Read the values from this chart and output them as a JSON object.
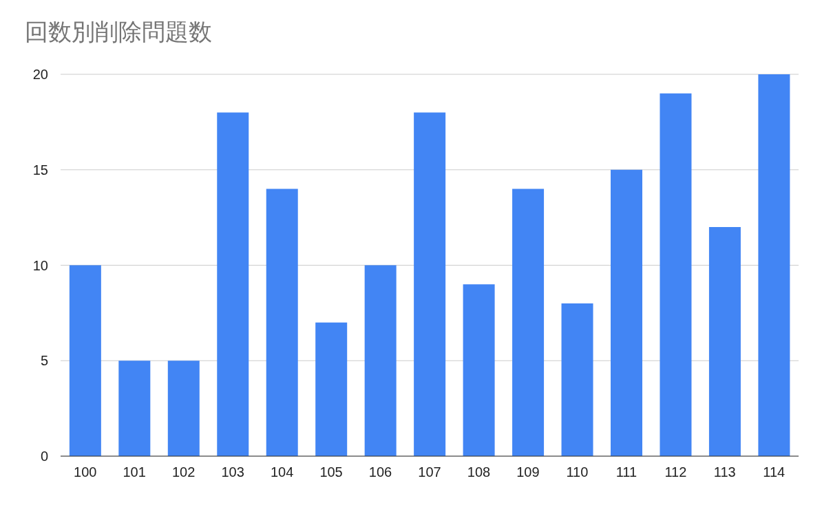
{
  "chart_data": {
    "type": "bar",
    "title": "回数別削除問題数",
    "categories": [
      "100",
      "101",
      "102",
      "103",
      "104",
      "105",
      "106",
      "107",
      "108",
      "109",
      "110",
      "111",
      "112",
      "113",
      "114"
    ],
    "values": [
      10,
      5,
      5,
      18,
      14,
      7,
      10,
      18,
      9,
      14,
      8,
      15,
      19,
      12,
      20
    ],
    "color": "#4285f4",
    "ylim": [
      0,
      20
    ],
    "yticks": [
      0,
      5,
      10,
      15,
      20
    ],
    "grid": "y"
  }
}
